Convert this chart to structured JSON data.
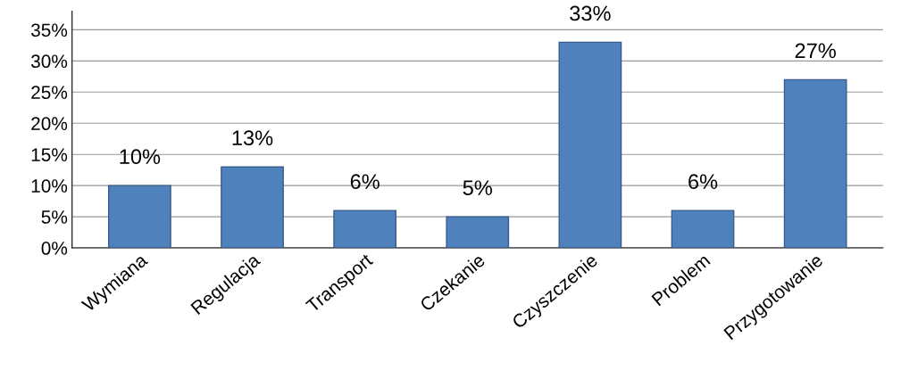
{
  "chart_data": {
    "type": "bar",
    "categories": [
      "Wymiana",
      "Regulacja",
      "Transport",
      "Czekanie",
      "Czyszczenie",
      "Problem",
      "Przygotowanie"
    ],
    "values": [
      10,
      13,
      6,
      5,
      33,
      6,
      27
    ],
    "color": "#4f81bd",
    "ylim": [
      0,
      38
    ],
    "yticks": [
      {
        "value": 0,
        "label": "0%"
      },
      {
        "value": 5,
        "label": "5%"
      },
      {
        "value": 10,
        "label": "10%"
      },
      {
        "value": 15,
        "label": "15%"
      },
      {
        "value": 20,
        "label": "20%"
      },
      {
        "value": 25,
        "label": "25%"
      },
      {
        "value": 30,
        "label": "30%"
      },
      {
        "value": 35,
        "label": "35%"
      }
    ],
    "value_labels": [
      "10%",
      "13%",
      "6%",
      "5%",
      "33%",
      "6%",
      "27%"
    ],
    "grid": "y"
  }
}
